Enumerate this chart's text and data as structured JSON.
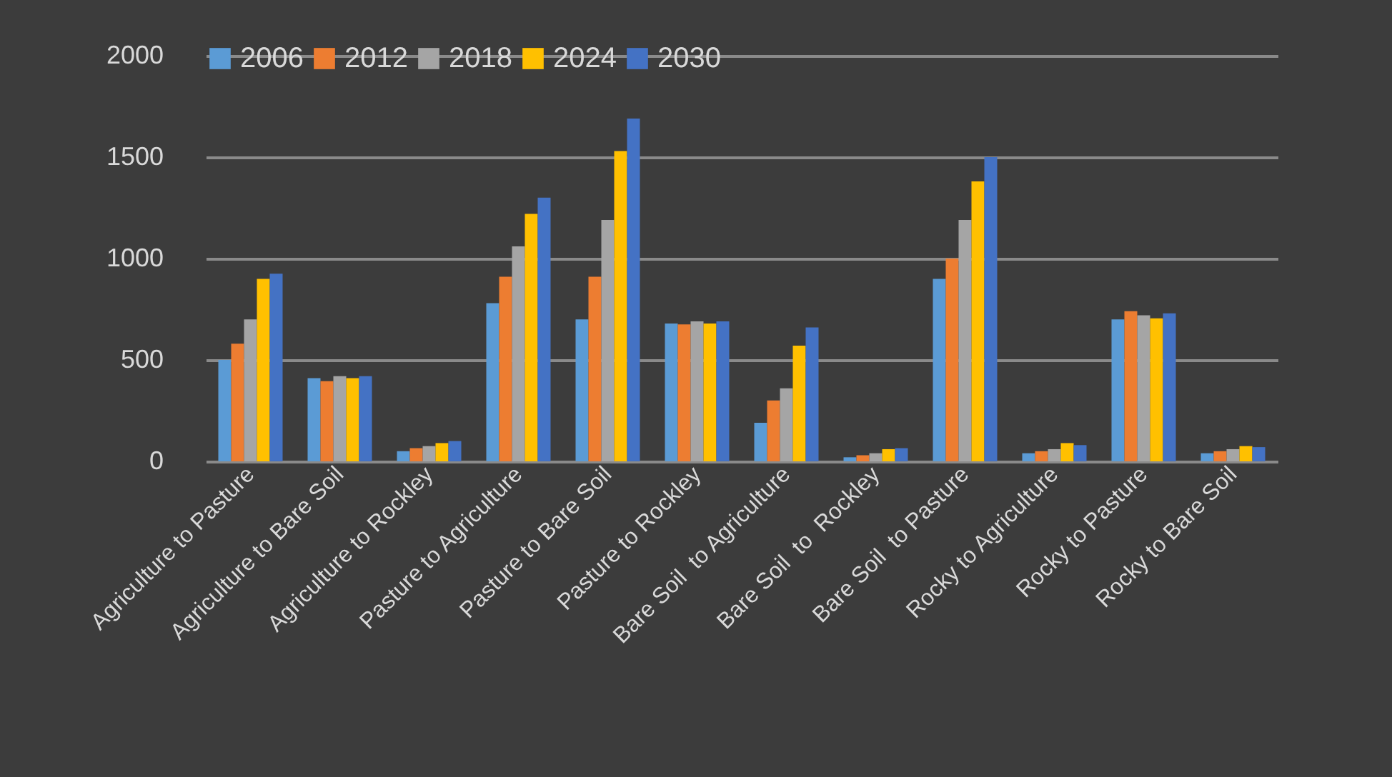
{
  "chart_data": {
    "type": "bar",
    "categories": [
      "Agriculture to Pasture",
      "Agriculture to Bare Soil",
      "Agriculture to Rockley",
      "Pasture to Agriculture",
      "Pasture to Bare Soil",
      "Pasture to Rockley",
      "Bare Soil  to Agriculture",
      "Bare Soil  to  Rockley",
      "Bare Soil  to Pasture",
      "Rocky to Agriculture",
      "Rocky to Pasture",
      "Rocky to Bare Soil"
    ],
    "series": [
      {
        "name": "2006",
        "color": "#5b9bd5",
        "values": [
          500,
          410,
          50,
          780,
          700,
          680,
          190,
          20,
          900,
          40,
          700,
          40
        ]
      },
      {
        "name": "2012",
        "color": "#ed7d31",
        "values": [
          580,
          395,
          65,
          910,
          910,
          675,
          300,
          30,
          1000,
          50,
          740,
          50
        ]
      },
      {
        "name": "2018",
        "color": "#a5a5a5",
        "values": [
          700,
          420,
          75,
          1060,
          1190,
          690,
          360,
          40,
          1190,
          60,
          720,
          60
        ]
      },
      {
        "name": "2024",
        "color": "#ffc000",
        "values": [
          900,
          410,
          90,
          1220,
          1530,
          680,
          570,
          60,
          1380,
          90,
          705,
          75
        ]
      },
      {
        "name": "2030",
        "color": "#4472c4",
        "values": [
          925,
          420,
          100,
          1300,
          1690,
          690,
          660,
          65,
          1500,
          80,
          730,
          70
        ]
      }
    ],
    "ylim": [
      0,
      2000
    ],
    "yticks": [
      0,
      500,
      1000,
      1500,
      2000
    ],
    "grid": "y",
    "legend": "top"
  }
}
